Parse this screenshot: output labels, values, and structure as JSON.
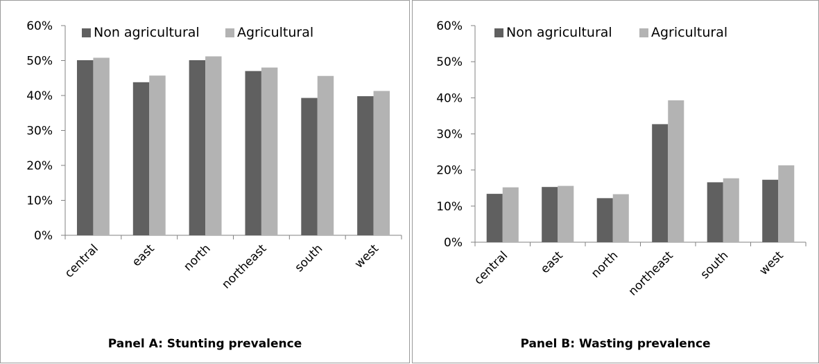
{
  "colors": {
    "non_agricultural": "#606060",
    "agricultural": "#b3b3b3",
    "axis": "#808080"
  },
  "chart_data": [
    {
      "type": "bar",
      "caption": "Panel A: Stunting prevalence",
      "categories": [
        "central",
        "east",
        "north",
        "northeast",
        "south",
        "west"
      ],
      "series": [
        {
          "name": "Non agricultural",
          "values": [
            50.1,
            43.8,
            50.1,
            47.0,
            39.3,
            39.8
          ]
        },
        {
          "name": "Agricultural",
          "values": [
            50.8,
            45.7,
            51.2,
            48.0,
            45.6,
            41.3
          ]
        }
      ],
      "ylim": [
        0,
        60
      ],
      "yticks": [
        0,
        10,
        20,
        30,
        40,
        50,
        60
      ],
      "ytick_labels": [
        "0%",
        "10%",
        "20%",
        "30%",
        "40%",
        "50%",
        "60%"
      ],
      "legend": "top",
      "grid": false
    },
    {
      "type": "bar",
      "caption": "Panel B: Wasting prevalence",
      "categories": [
        "central",
        "east",
        "north",
        "northeast",
        "south",
        "west"
      ],
      "series": [
        {
          "name": "Non agricultural",
          "values": [
            13.4,
            15.3,
            12.2,
            32.7,
            16.6,
            17.3
          ]
        },
        {
          "name": "Agricultural",
          "values": [
            15.2,
            15.6,
            13.3,
            39.3,
            17.7,
            21.3
          ]
        }
      ],
      "ylim": [
        0,
        60
      ],
      "yticks": [
        0,
        10,
        20,
        30,
        40,
        50,
        60
      ],
      "ytick_labels": [
        "0%",
        "10%",
        "20%",
        "30%",
        "40%",
        "50%",
        "60%"
      ],
      "legend": "top",
      "grid": false
    }
  ]
}
